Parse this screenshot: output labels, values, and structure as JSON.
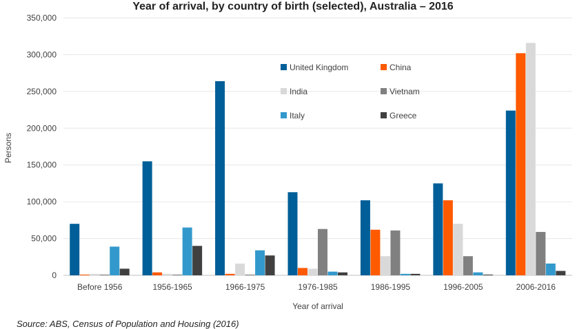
{
  "chart_data": {
    "type": "bar",
    "title": "Year of arrival, by country of birth (selected), Australia – 2016",
    "xlabel": "Year of arrival",
    "ylabel": "Persons",
    "ylim": [
      0,
      350000
    ],
    "yticks": [
      "0",
      "50,000",
      "100,000",
      "150,000",
      "200,000",
      "250,000",
      "300,000",
      "350,000"
    ],
    "grid": true,
    "legend": "top-center",
    "categories": [
      "Before 1956",
      "1956-1965",
      "1966-1975",
      "1976-1985",
      "1986-1995",
      "1996-2005",
      "2006-2016"
    ],
    "series": [
      {
        "name": "United Kingdom",
        "color": "#005f98",
        "values": [
          70000,
          155000,
          264000,
          113000,
          102000,
          125000,
          224000
        ]
      },
      {
        "name": "China",
        "color": "#ff5a00",
        "values": [
          1000,
          4000,
          2000,
          10000,
          62000,
          102000,
          302000
        ]
      },
      {
        "name": "India",
        "color": "#d9d9d9",
        "values": [
          2000,
          2000,
          16000,
          9000,
          26000,
          70000,
          316000
        ]
      },
      {
        "name": "Vietnam",
        "color": "#808080",
        "values": [
          1000,
          1000,
          1000,
          63000,
          61000,
          26000,
          59000
        ]
      },
      {
        "name": "Italy",
        "color": "#3399cc",
        "values": [
          39000,
          65000,
          34000,
          5000,
          2000,
          4000,
          16000
        ]
      },
      {
        "name": "Greece",
        "color": "#404040",
        "values": [
          9000,
          40000,
          27000,
          4000,
          2000,
          1000,
          6000
        ]
      }
    ],
    "source": "Source:  ABS, Census of Population and Housing (2016)"
  }
}
